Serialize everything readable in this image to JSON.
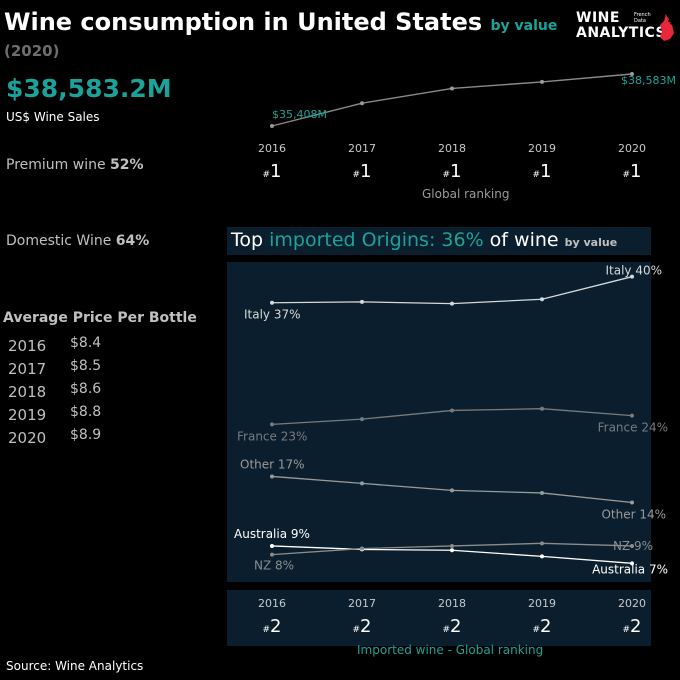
{
  "header": {
    "title": "Wine consumption in United States",
    "subtitle": "by value",
    "year": "(2020)"
  },
  "logo": {
    "line1": "WINE",
    "line2": "ANALYTICS",
    "tag1": "French",
    "tag2": "Data",
    "tag3": "Wine"
  },
  "kpi": {
    "value": "$38,583.2M",
    "label": "US$ Wine Sales"
  },
  "premium": {
    "label": "Premium wine",
    "value": "52%"
  },
  "domestic": {
    "label": "Domestic Wine",
    "value": "64%"
  },
  "avg_price": {
    "title": "Average Price Per Bottle",
    "rows": [
      {
        "year": "2016",
        "price": "$8.4"
      },
      {
        "year": "2017",
        "price": "$8.5"
      },
      {
        "year": "2018",
        "price": "$8.6"
      },
      {
        "year": "2019",
        "price": "$8.8"
      },
      {
        "year": "2020",
        "price": "$8.9"
      }
    ]
  },
  "global_ranking": {
    "label": "Global ranking",
    "hash": "#",
    "years": [
      "2016",
      "2017",
      "2018",
      "2019",
      "2020"
    ],
    "ranks": [
      "1",
      "1",
      "1",
      "1",
      "1"
    ]
  },
  "imported": {
    "title_pre": "Top ",
    "title_teal": "imported Origins: 36%",
    "title_post": " of wine ",
    "title_small": "by value"
  },
  "imported_ranking": {
    "label": "Imported wine - Global ranking",
    "hash": "#",
    "years": [
      "2016",
      "2017",
      "2018",
      "2019",
      "2020"
    ],
    "ranks": [
      "2",
      "2",
      "2",
      "2",
      "2"
    ]
  },
  "source": "Source: Wine Analytics",
  "colors": {
    "accent": "#1aa39a",
    "panel": "#0b1e2d",
    "italy": "#d8d8d8",
    "france": "#7a7a7a",
    "other": "#9a9a9a",
    "australia": "#ffffff",
    "nz": "#8c8c8c"
  },
  "chart_data": [
    {
      "type": "line",
      "x": [
        "2016",
        "2017",
        "2018",
        "2019",
        "2020"
      ],
      "series": [
        {
          "values": [
            35408,
            36800,
            37700,
            38100,
            38583
          ]
        }
      ],
      "labels": {
        "first": "$35,408M",
        "last": "$38,583M"
      }
    },
    {
      "type": "line",
      "x": [
        "2016",
        "2017",
        "2018",
        "2019",
        "2020"
      ],
      "ylim": [
        6,
        41
      ],
      "series": [
        {
          "name": "Italy",
          "values": [
            37,
            37.1,
            36.9,
            37.4,
            40
          ],
          "first_label": "Italy 37%",
          "last_label": "Italy 40%"
        },
        {
          "name": "France",
          "values": [
            23,
            23.6,
            24.6,
            24.8,
            24
          ],
          "first_label": "France 23%",
          "last_label": "France 24%"
        },
        {
          "name": "Other",
          "values": [
            17,
            16.2,
            15.4,
            15.1,
            14
          ],
          "first_label": "Other 17%",
          "last_label": "Other 14%"
        },
        {
          "name": "Australia",
          "values": [
            9,
            8.6,
            8.5,
            7.8,
            7
          ],
          "first_label": "Australia 9%",
          "last_label": "Australia 7%"
        },
        {
          "name": "NZ",
          "values": [
            8,
            8.7,
            9,
            9.3,
            9
          ],
          "first_label": "NZ 8%",
          "last_label": "NZ 9%"
        }
      ]
    }
  ]
}
